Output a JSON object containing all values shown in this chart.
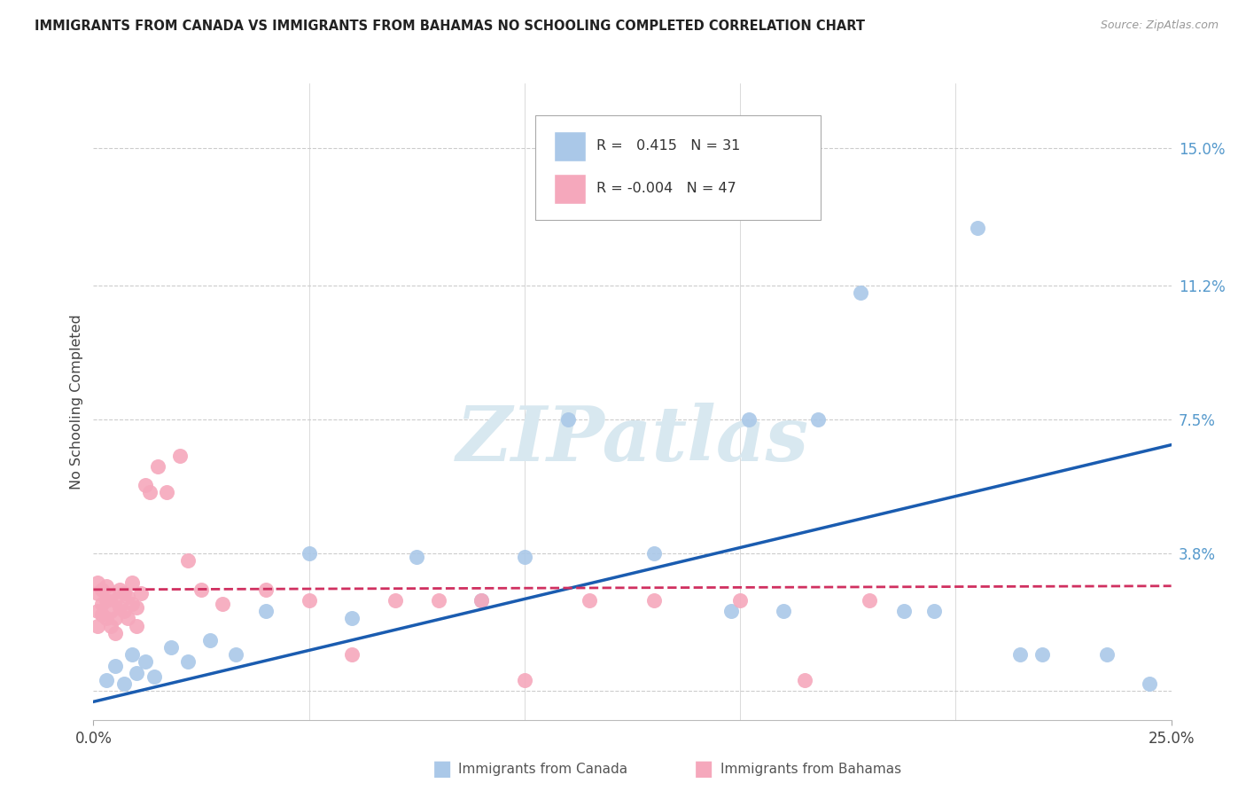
{
  "title": "IMMIGRANTS FROM CANADA VS IMMIGRANTS FROM BAHAMAS NO SCHOOLING COMPLETED CORRELATION CHART",
  "source": "Source: ZipAtlas.com",
  "ylabel": "No Schooling Completed",
  "xlim": [
    0.0,
    0.25
  ],
  "ylim": [
    -0.008,
    0.168
  ],
  "ytick_positions": [
    0.0,
    0.038,
    0.075,
    0.112,
    0.15
  ],
  "ytick_labels": [
    "",
    "3.8%",
    "7.5%",
    "11.2%",
    "15.0%"
  ],
  "canada_R": 0.415,
  "canada_N": 31,
  "bahamas_R": -0.004,
  "bahamas_N": 47,
  "canada_color": "#aac8e8",
  "bahamas_color": "#f5a8bc",
  "canada_line_color": "#1a5cb0",
  "bahamas_line_color": "#d03060",
  "grid_color": "#cccccc",
  "watermark": "ZIPatlas",
  "canada_x": [
    0.003,
    0.005,
    0.007,
    0.009,
    0.01,
    0.012,
    0.014,
    0.018,
    0.022,
    0.027,
    0.033,
    0.04,
    0.05,
    0.06,
    0.075,
    0.09,
    0.1,
    0.11,
    0.13,
    0.148,
    0.152,
    0.16,
    0.168,
    0.178,
    0.188,
    0.195,
    0.205,
    0.215,
    0.22,
    0.235,
    0.245
  ],
  "canada_y": [
    0.003,
    0.007,
    0.002,
    0.01,
    0.005,
    0.008,
    0.004,
    0.012,
    0.008,
    0.014,
    0.01,
    0.022,
    0.038,
    0.02,
    0.037,
    0.025,
    0.037,
    0.075,
    0.038,
    0.022,
    0.075,
    0.022,
    0.075,
    0.11,
    0.022,
    0.022,
    0.128,
    0.01,
    0.01,
    0.01,
    0.002
  ],
  "bahamas_x": [
    0.001,
    0.001,
    0.001,
    0.001,
    0.002,
    0.002,
    0.002,
    0.003,
    0.003,
    0.003,
    0.004,
    0.004,
    0.004,
    0.005,
    0.005,
    0.005,
    0.006,
    0.006,
    0.007,
    0.007,
    0.008,
    0.008,
    0.009,
    0.009,
    0.01,
    0.01,
    0.011,
    0.012,
    0.013,
    0.015,
    0.017,
    0.02,
    0.022,
    0.025,
    0.03,
    0.04,
    0.05,
    0.06,
    0.07,
    0.08,
    0.09,
    0.1,
    0.115,
    0.13,
    0.15,
    0.165,
    0.18
  ],
  "bahamas_y": [
    0.027,
    0.03,
    0.022,
    0.018,
    0.024,
    0.028,
    0.021,
    0.025,
    0.029,
    0.02,
    0.026,
    0.022,
    0.018,
    0.025,
    0.02,
    0.016,
    0.023,
    0.028,
    0.022,
    0.027,
    0.02,
    0.026,
    0.024,
    0.03,
    0.018,
    0.023,
    0.027,
    0.057,
    0.055,
    0.062,
    0.055,
    0.065,
    0.036,
    0.028,
    0.024,
    0.028,
    0.025,
    0.01,
    0.025,
    0.025,
    0.025,
    0.003,
    0.025,
    0.025,
    0.025,
    0.003,
    0.025
  ],
  "canada_line_x0": 0.0,
  "canada_line_y0": -0.003,
  "canada_line_x1": 0.25,
  "canada_line_y1": 0.068,
  "bahamas_line_x0": 0.0,
  "bahamas_line_y0": 0.028,
  "bahamas_line_x1": 0.25,
  "bahamas_line_y1": 0.029
}
